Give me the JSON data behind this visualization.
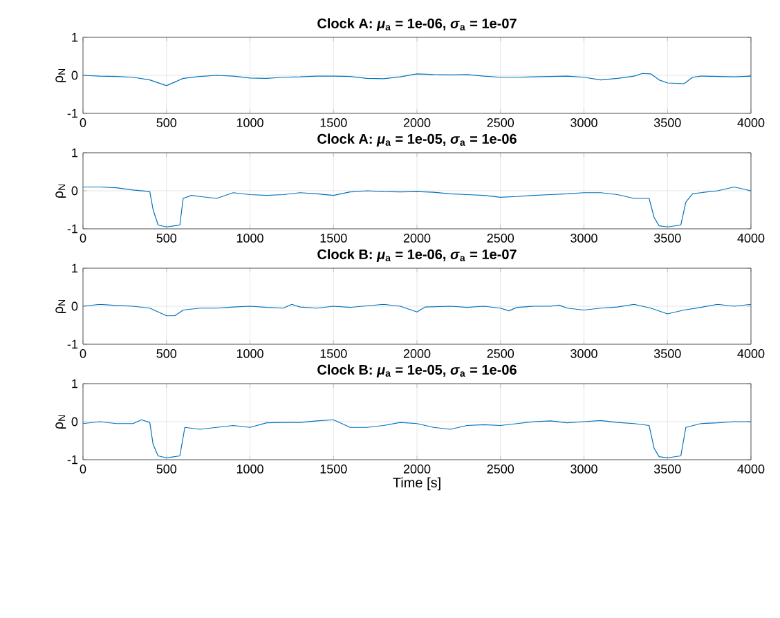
{
  "chart_data": [
    {
      "type": "line",
      "title": "Clock A: *μ*$_{a}$ = 1e-06, *σ*$_{a}$ = 1e-07",
      "ylabel": "ρ$_{N}$",
      "color": "#0072bd",
      "grid": true,
      "xlim": [
        0,
        4000
      ],
      "ylim": [
        -1,
        1
      ],
      "xticks": [
        0,
        500,
        1000,
        1500,
        2000,
        2500,
        3000,
        3500,
        4000
      ],
      "yticks": [
        -1,
        0,
        1
      ],
      "x": [
        0,
        100,
        200,
        300,
        400,
        500,
        600,
        700,
        800,
        900,
        1000,
        1100,
        1200,
        1300,
        1400,
        1500,
        1600,
        1700,
        1800,
        1900,
        2000,
        2100,
        2200,
        2300,
        2400,
        2500,
        2600,
        2700,
        2800,
        2900,
        3000,
        3100,
        3200,
        3300,
        3350,
        3400,
        3450,
        3500,
        3600,
        3650,
        3700,
        3800,
        3900,
        4000
      ],
      "values": [
        0.0,
        -0.02,
        -0.03,
        -0.05,
        -0.12,
        -0.27,
        -0.08,
        -0.03,
        0.0,
        -0.02,
        -0.07,
        -0.08,
        -0.05,
        -0.04,
        -0.02,
        -0.02,
        -0.03,
        -0.08,
        -0.09,
        -0.04,
        0.04,
        0.02,
        0.01,
        0.02,
        -0.02,
        -0.05,
        -0.05,
        -0.04,
        -0.03,
        -0.02,
        -0.05,
        -0.12,
        -0.08,
        -0.02,
        0.05,
        0.04,
        -0.12,
        -0.2,
        -0.22,
        -0.05,
        -0.02,
        -0.03,
        -0.04,
        -0.02
      ]
    },
    {
      "type": "line",
      "title": "Clock A: *μ*$_{a}$ = 1e-05, *σ*$_{a}$ = 1e-06",
      "ylabel": "ρ$_{N}$",
      "color": "#0072bd",
      "grid": true,
      "xlim": [
        0,
        4000
      ],
      "ylim": [
        -1,
        1
      ],
      "xticks": [
        0,
        500,
        1000,
        1500,
        2000,
        2500,
        3000,
        3500,
        4000
      ],
      "yticks": [
        -1,
        0,
        1
      ],
      "x": [
        0,
        100,
        200,
        300,
        400,
        420,
        450,
        500,
        580,
        600,
        650,
        700,
        800,
        900,
        1000,
        1100,
        1200,
        1300,
        1400,
        1500,
        1600,
        1700,
        1800,
        1900,
        2000,
        2100,
        2200,
        2300,
        2400,
        2500,
        2600,
        2700,
        2800,
        2900,
        3000,
        3100,
        3200,
        3300,
        3390,
        3420,
        3450,
        3500,
        3580,
        3610,
        3650,
        3700,
        3800,
        3900,
        4000
      ],
      "values": [
        0.1,
        0.1,
        0.08,
        0.02,
        -0.02,
        -0.5,
        -0.9,
        -0.95,
        -0.9,
        -0.2,
        -0.12,
        -0.15,
        -0.2,
        -0.05,
        -0.1,
        -0.12,
        -0.1,
        -0.05,
        -0.08,
        -0.12,
        -0.03,
        0.0,
        -0.02,
        -0.03,
        -0.02,
        -0.04,
        -0.08,
        -0.1,
        -0.12,
        -0.17,
        -0.15,
        -0.12,
        -0.1,
        -0.08,
        -0.05,
        -0.05,
        -0.1,
        -0.2,
        -0.2,
        -0.7,
        -0.92,
        -0.95,
        -0.9,
        -0.3,
        -0.08,
        -0.05,
        0.0,
        0.1,
        0.0
      ]
    },
    {
      "type": "line",
      "title": "Clock B: *μ*$_{a}$ = 1e-06, *σ*$_{a}$ = 1e-07",
      "ylabel": "ρ$_{N}$",
      "color": "#0072bd",
      "grid": true,
      "xlim": [
        0,
        4000
      ],
      "ylim": [
        -1,
        1
      ],
      "xticks": [
        0,
        500,
        1000,
        1500,
        2000,
        2500,
        3000,
        3500,
        4000
      ],
      "yticks": [
        -1,
        0,
        1
      ],
      "x": [
        0,
        100,
        200,
        300,
        400,
        500,
        550,
        600,
        700,
        800,
        900,
        1000,
        1100,
        1200,
        1250,
        1300,
        1400,
        1500,
        1600,
        1800,
        1900,
        2000,
        2050,
        2200,
        2300,
        2400,
        2500,
        2550,
        2600,
        2700,
        2800,
        2850,
        2900,
        3000,
        3100,
        3200,
        3300,
        3400,
        3500,
        3600,
        3700,
        3800,
        3900,
        4000
      ],
      "values": [
        0.0,
        0.05,
        0.02,
        0.0,
        -0.05,
        -0.25,
        -0.25,
        -0.1,
        -0.05,
        -0.05,
        -0.02,
        0.0,
        -0.03,
        -0.05,
        0.05,
        -0.02,
        -0.05,
        0.0,
        -0.03,
        0.05,
        0.0,
        -0.15,
        -0.02,
        0.0,
        -0.03,
        0.0,
        -0.05,
        -0.12,
        -0.03,
        0.0,
        0.0,
        0.03,
        -0.05,
        -0.1,
        -0.05,
        -0.02,
        0.05,
        -0.05,
        -0.2,
        -0.1,
        -0.03,
        0.05,
        0.0,
        0.05
      ]
    },
    {
      "type": "line",
      "title": "Clock B: *μ*$_{a}$ = 1e-05, *σ*$_{a}$ = 1e-06",
      "ylabel": "ρ$_{N}$",
      "xlabel": "Time [s]",
      "color": "#0072bd",
      "grid": true,
      "xlim": [
        0,
        4000
      ],
      "ylim": [
        -1,
        1
      ],
      "xticks": [
        0,
        500,
        1000,
        1500,
        2000,
        2500,
        3000,
        3500,
        4000
      ],
      "yticks": [
        -1,
        0,
        1
      ],
      "x": [
        0,
        100,
        200,
        300,
        350,
        400,
        420,
        450,
        500,
        580,
        610,
        700,
        800,
        900,
        1000,
        1100,
        1200,
        1300,
        1400,
        1500,
        1600,
        1700,
        1800,
        1900,
        2000,
        2100,
        2200,
        2300,
        2400,
        2500,
        2600,
        2700,
        2800,
        2900,
        3000,
        3100,
        3200,
        3300,
        3390,
        3420,
        3450,
        3500,
        3580,
        3610,
        3700,
        3800,
        3900,
        4000
      ],
      "values": [
        -0.05,
        0.0,
        -0.05,
        -0.05,
        0.05,
        -0.02,
        -0.6,
        -0.9,
        -0.95,
        -0.9,
        -0.15,
        -0.2,
        -0.15,
        -0.1,
        -0.15,
        -0.03,
        -0.02,
        -0.02,
        0.02,
        0.05,
        -0.15,
        -0.15,
        -0.1,
        -0.02,
        -0.05,
        -0.15,
        -0.2,
        -0.1,
        -0.08,
        -0.1,
        -0.05,
        0.0,
        0.02,
        -0.03,
        0.0,
        0.03,
        -0.02,
        -0.05,
        -0.1,
        -0.7,
        -0.92,
        -0.95,
        -0.9,
        -0.15,
        -0.05,
        -0.03,
        0.0,
        0.0
      ]
    }
  ]
}
